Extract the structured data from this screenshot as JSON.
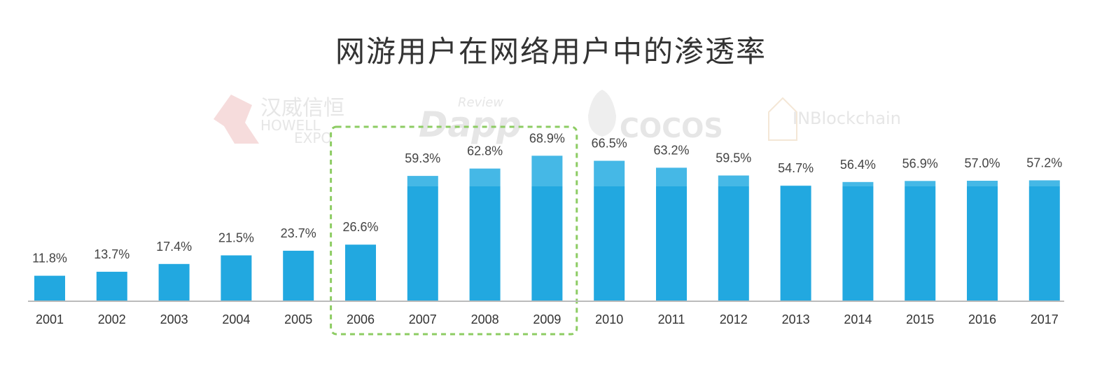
{
  "chart_data": {
    "type": "bar",
    "title": "网游用户在网络用户中的渗透率",
    "categories": [
      "2001",
      "2002",
      "2003",
      "2004",
      "2005",
      "2006",
      "2007",
      "2008",
      "2009",
      "2010",
      "2011",
      "2012",
      "2013",
      "2014",
      "2015",
      "2016",
      "2017"
    ],
    "values": [
      11.8,
      13.7,
      17.4,
      21.5,
      23.7,
      26.6,
      59.3,
      62.8,
      68.9,
      66.5,
      63.2,
      59.5,
      54.7,
      56.4,
      56.9,
      57.0,
      57.2
    ],
    "value_labels": [
      "11.8%",
      "13.7%",
      "17.4%",
      "21.5%",
      "23.7%",
      "26.6%",
      "59.3%",
      "62.8%",
      "68.9%",
      "66.5%",
      "63.2%",
      "59.5%",
      "54.7%",
      "56.4%",
      "56.9%",
      "57.0%",
      "57.2%"
    ],
    "ylim": [
      0,
      80
    ],
    "grid": false,
    "highlight_range": [
      "2006",
      "2009"
    ],
    "colors": {
      "bar": "#22a8e0",
      "bar_top": "#45b8e6",
      "axis": "#bbbbbb",
      "highlight_border": "#8dcc63"
    }
  },
  "watermarks": {
    "howell_cn": "汉威信恒",
    "howell_en1": "HOWELL",
    "howell_en2": "EXPO",
    "dapp_review": "Review",
    "dapp": "Dapp",
    "cocos": "COCOS",
    "inblockchain": "INBlockchain"
  }
}
